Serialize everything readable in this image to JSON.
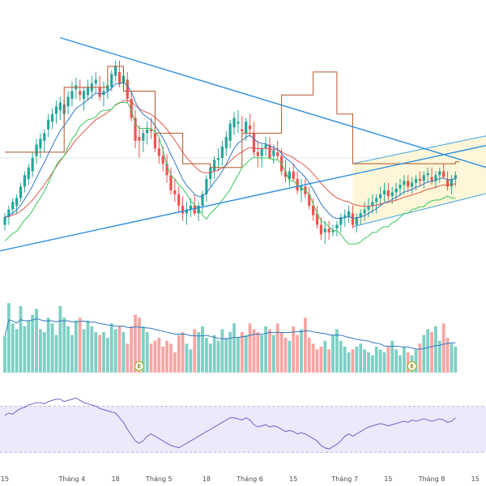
{
  "chart_data": {
    "type": "candlestick",
    "grid": false,
    "colors": {
      "up": "#26a69a",
      "down": "#ef5350",
      "up_volume": "#7fcfc5",
      "down_volume": "#f7a5a3",
      "ema_fast": "#2f79c4",
      "ema_slow": "#e3564a",
      "kijun": "#b5562a",
      "tenkan": "#37c85a",
      "trendline": "#2e8fe0",
      "channel_fill": "#fdf6d8",
      "channel_line": "#3aa0e6",
      "rsi_line": "#6e64c6",
      "rsi_band": "#ede8fa",
      "earnings_badge": "#a6b836"
    },
    "x_tick_labels": [
      {
        "text": "15",
        "i": 0
      },
      {
        "text": "Tháng 4",
        "i": 17
      },
      {
        "text": "18",
        "i": 28
      },
      {
        "text": "Tháng 5",
        "i": 39
      },
      {
        "text": "18",
        "i": 51
      },
      {
        "text": "Tháng 6",
        "i": 62
      },
      {
        "text": "15",
        "i": 73
      },
      {
        "text": "Tháng 7",
        "i": 86
      },
      {
        "text": "15",
        "i": 97
      },
      {
        "text": "Tháng 8",
        "i": 108
      },
      {
        "text": "15",
        "i": 119
      }
    ],
    "earnings_markers": [
      {
        "label": "E",
        "i": 34
      },
      {
        "label": "E",
        "i": 103
      }
    ],
    "price": {
      "ohlc": [
        [
          80,
          86,
          77,
          84
        ],
        [
          84,
          90,
          80,
          88
        ],
        [
          88,
          94,
          85,
          92
        ],
        [
          90,
          96,
          86,
          94
        ],
        [
          94,
          102,
          92,
          100
        ],
        [
          100,
          108,
          97,
          106
        ],
        [
          104,
          112,
          101,
          110
        ],
        [
          108,
          118,
          105,
          115
        ],
        [
          116,
          125,
          112,
          122
        ],
        [
          120,
          128,
          115,
          125
        ],
        [
          124,
          130,
          118,
          128
        ],
        [
          130,
          138,
          126,
          135
        ],
        [
          134,
          141,
          130,
          138
        ],
        [
          138,
          145,
          133,
          142
        ],
        [
          140,
          147,
          135,
          144
        ],
        [
          138,
          146,
          133,
          143
        ],
        [
          142,
          150,
          138,
          147
        ],
        [
          146,
          155,
          142,
          150
        ],
        [
          151,
          157,
          146,
          153
        ],
        [
          150,
          156,
          145,
          148
        ],
        [
          146,
          152,
          140,
          150
        ],
        [
          148,
          156,
          145,
          152
        ],
        [
          150,
          158,
          146,
          154
        ],
        [
          154,
          160,
          149,
          156
        ],
        [
          152,
          158,
          145,
          147
        ],
        [
          148,
          155,
          142,
          150
        ],
        [
          150,
          156,
          146,
          153
        ],
        [
          152,
          161,
          150,
          159
        ],
        [
          158,
          166,
          155,
          163
        ],
        [
          160,
          166,
          152,
          154
        ],
        [
          154,
          162,
          150,
          158
        ],
        [
          156,
          160,
          144,
          146
        ],
        [
          146,
          150,
          134,
          136
        ],
        [
          136,
          140,
          120,
          124
        ],
        [
          126,
          132,
          115,
          124
        ],
        [
          124,
          130,
          118,
          128
        ],
        [
          128,
          134,
          122,
          130
        ],
        [
          130,
          136,
          125,
          129
        ],
        [
          128,
          132,
          118,
          120
        ],
        [
          120,
          125,
          112,
          116
        ],
        [
          116,
          121,
          108,
          112
        ],
        [
          112,
          117,
          102,
          106
        ],
        [
          106,
          110,
          96,
          98
        ],
        [
          98,
          104,
          92,
          96
        ],
        [
          96,
          100,
          86,
          90
        ],
        [
          90,
          95,
          82,
          86
        ],
        [
          86,
          92,
          80,
          88
        ],
        [
          88,
          94,
          84,
          90
        ],
        [
          90,
          96,
          85,
          86
        ],
        [
          86,
          92,
          82,
          90
        ],
        [
          90,
          98,
          86,
          96
        ],
        [
          96,
          106,
          92,
          104
        ],
        [
          104,
          112,
          100,
          110
        ],
        [
          108,
          116,
          104,
          114
        ],
        [
          114,
          120,
          108,
          115
        ],
        [
          115,
          124,
          111,
          121
        ],
        [
          120,
          129,
          116,
          126
        ],
        [
          124,
          135,
          120,
          133
        ],
        [
          131,
          139,
          127,
          136
        ],
        [
          133,
          140,
          128,
          134
        ],
        [
          130,
          137,
          126,
          129
        ],
        [
          128,
          136,
          124,
          134
        ],
        [
          132,
          138,
          126,
          130
        ],
        [
          128,
          134,
          116,
          118
        ],
        [
          118,
          124,
          110,
          116
        ],
        [
          116,
          122,
          110,
          120
        ],
        [
          120,
          126,
          116,
          122
        ],
        [
          122,
          126,
          114,
          115
        ],
        [
          116,
          122,
          112,
          119
        ],
        [
          118,
          124,
          114,
          116
        ],
        [
          116,
          120,
          106,
          108
        ],
        [
          108,
          114,
          102,
          105
        ],
        [
          104,
          110,
          100,
          108
        ],
        [
          108,
          112,
          103,
          104
        ],
        [
          104,
          108,
          96,
          98
        ],
        [
          98,
          104,
          92,
          100
        ],
        [
          100,
          104,
          94,
          96
        ],
        [
          96,
          100,
          88,
          90
        ],
        [
          90,
          94,
          82,
          85
        ],
        [
          86,
          90,
          78,
          80
        ],
        [
          80,
          84,
          72,
          75
        ],
        [
          76,
          82,
          70,
          78
        ],
        [
          78,
          82,
          72,
          76
        ],
        [
          76,
          80,
          74,
          77
        ],
        [
          78,
          82,
          74,
          80
        ],
        [
          80,
          86,
          76,
          84
        ],
        [
          84,
          88,
          79,
          85
        ],
        [
          84,
          90,
          81,
          87
        ],
        [
          86,
          90,
          78,
          80
        ],
        [
          80,
          86,
          76,
          84
        ],
        [
          84,
          88,
          80,
          86
        ],
        [
          86,
          92,
          82,
          88
        ],
        [
          88,
          94,
          84,
          90
        ],
        [
          90,
          96,
          86,
          92
        ],
        [
          92,
          96,
          86,
          94
        ],
        [
          94,
          100,
          90,
          96
        ],
        [
          96,
          102,
          92,
          98
        ],
        [
          98,
          102,
          93,
          95
        ],
        [
          95,
          100,
          91,
          97
        ],
        [
          97,
          102,
          93,
          99
        ],
        [
          99,
          104,
          95,
          101
        ],
        [
          101,
          106,
          96,
          103
        ],
        [
          103,
          106,
          97,
          100
        ],
        [
          100,
          105,
          96,
          102
        ],
        [
          102,
          106,
          98,
          104
        ],
        [
          104,
          108,
          100,
          103
        ],
        [
          103,
          108,
          99,
          106
        ],
        [
          106,
          110,
          102,
          107
        ],
        [
          105,
          110,
          101,
          103
        ],
        [
          103,
          108,
          99,
          106
        ],
        [
          106,
          110,
          102,
          108
        ],
        [
          108,
          112,
          104,
          105
        ],
        [
          104,
          108,
          98,
          100
        ],
        [
          100,
          106,
          96,
          104
        ],
        [
          104,
          108,
          100,
          106
        ]
      ],
      "volume": [
        1.25,
        2.4,
        1.7,
        1.5,
        2.3,
        1.6,
        1.8,
        2.0,
        2.2,
        1.5,
        1.4,
        1.9,
        1.7,
        1.3,
        2.3,
        1.9,
        1.6,
        1.3,
        1.8,
        1.9,
        1.5,
        1.8,
        1.6,
        1.4,
        1.3,
        1.4,
        1.2,
        1.7,
        1.5,
        1.6,
        1.4,
        1.0,
        1.6,
        2.0,
        1.9,
        1.6,
        1.4,
        1.0,
        1.1,
        1.2,
        0.9,
        1.1,
        1.0,
        0.7,
        1.3,
        1.4,
        1.0,
        0.8,
        1.5,
        1.4,
        1.6,
        1.2,
        1.0,
        1.3,
        1.1,
        1.5,
        1.2,
        1.4,
        1.7,
        1.2,
        1.4,
        1.3,
        1.7,
        1.5,
        1.4,
        1.3,
        1.6,
        1.5,
        1.3,
        1.7,
        1.4,
        1.2,
        1.1,
        1.6,
        1.3,
        1.5,
        1.9,
        1.2,
        1.0,
        0.8,
        0.9,
        1.1,
        0.8,
        1.3,
        1.5,
        1.1,
        0.9,
        0.7,
        0.8,
        0.9,
        1.0,
        0.8,
        0.7,
        0.6,
        0.9,
        0.8,
        0.7,
        0.9,
        1.1,
        0.8,
        0.6,
        0.9,
        0.7,
        0.6,
        0.8,
        1.0,
        1.3,
        1.5,
        1.4,
        1.6,
        1.1,
        1.7,
        1.2,
        1.0,
        0.9
      ],
      "y_range": [
        45,
        185
      ],
      "volume_range": [
        0,
        2.8
      ]
    },
    "overlays": {
      "ema_fast_period": 9,
      "ema_slow_period": 21,
      "kijun_steps": [
        [
          0,
          118
        ],
        [
          15,
          152
        ],
        [
          26,
          163
        ],
        [
          30,
          150
        ],
        [
          38,
          128
        ],
        [
          45,
          112
        ],
        [
          52,
          110
        ],
        [
          60,
          128
        ],
        [
          70,
          148
        ],
        [
          78,
          160
        ],
        [
          84,
          138
        ],
        [
          88,
          112
        ],
        [
          114,
          113
        ]
      ],
      "tenkan_offset": -10,
      "trendline_upper": [
        [
          14,
          178
        ],
        [
          125,
          108
        ]
      ],
      "trendline_lower": [
        [
          -2,
          66
        ],
        [
          125,
          123
        ]
      ],
      "channel_upper": [
        [
          88,
          112
        ],
        [
          125,
          128
        ]
      ],
      "channel_lower": [
        [
          88,
          79
        ],
        [
          125,
          98
        ]
      ]
    },
    "rsi": {
      "values": [
        62,
        64,
        63,
        66,
        68,
        69,
        71,
        72,
        73,
        73,
        72,
        74,
        75,
        76,
        76,
        74,
        75,
        76,
        77,
        75,
        73,
        72,
        71,
        70,
        68,
        67,
        66,
        65,
        64,
        60,
        56,
        50,
        45,
        40,
        38,
        40,
        44,
        46,
        44,
        42,
        40,
        38,
        36,
        35,
        34,
        36,
        38,
        40,
        42,
        44,
        46,
        48,
        50,
        52,
        54,
        56,
        58,
        60,
        60,
        59,
        58,
        60,
        58,
        54,
        52,
        53,
        54,
        52,
        53,
        52,
        50,
        48,
        49,
        48,
        46,
        47,
        46,
        44,
        42,
        40,
        36,
        34,
        33,
        35,
        37,
        40,
        44,
        46,
        44,
        46,
        48,
        50,
        52,
        53,
        54,
        55,
        54,
        53,
        54,
        55,
        56,
        57,
        56,
        58,
        57,
        58,
        59,
        58,
        57,
        58,
        59,
        58,
        56,
        57,
        60
      ],
      "upper_level": 70,
      "lower_level": 30,
      "y_range": [
        15,
        85
      ]
    }
  }
}
